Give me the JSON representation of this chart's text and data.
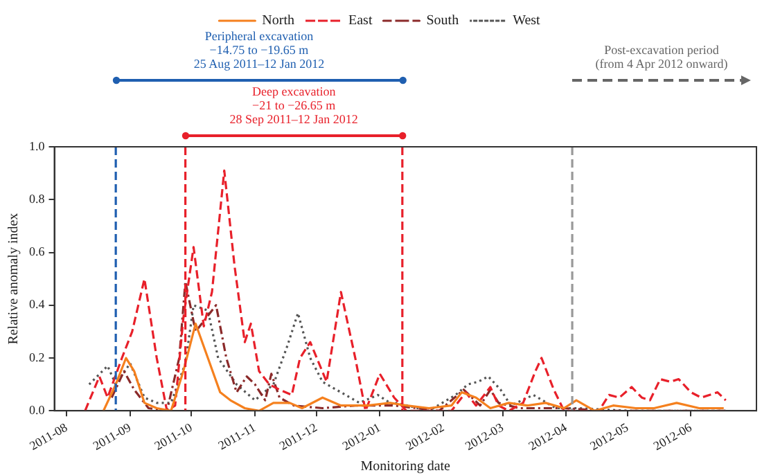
{
  "chart_data": {
    "type": "line",
    "xlabel": "Monitoring date",
    "ylabel": "Relative anomaly index",
    "xlim": [
      "2011-07-26",
      "2012-07-03"
    ],
    "xticks": [
      {
        "value": "2011-08-01",
        "label": "2011-08"
      },
      {
        "value": "2011-09-01",
        "label": "2011-09"
      },
      {
        "value": "2011-10-01",
        "label": "2011-10"
      },
      {
        "value": "2011-11-01",
        "label": "2011-11"
      },
      {
        "value": "2011-12-01",
        "label": "2011-12"
      },
      {
        "value": "2012-01-01",
        "label": "2012-01"
      },
      {
        "value": "2012-02-01",
        "label": "2012-02"
      },
      {
        "value": "2012-03-01",
        "label": "2012-03"
      },
      {
        "value": "2012-04-01",
        "label": "2012-04"
      },
      {
        "value": "2012-05-01",
        "label": "2012-05"
      },
      {
        "value": "2012-06-01",
        "label": "2012-06"
      }
    ],
    "ylim": [
      0,
      1
    ],
    "yticks": [
      {
        "value": 0,
        "label": "0.0"
      },
      {
        "value": 0.2,
        "label": "0.2"
      },
      {
        "value": 0.4,
        "label": "0.4"
      },
      {
        "value": 0.6,
        "label": "0.6"
      },
      {
        "value": 0.8,
        "label": "0.8"
      },
      {
        "value": 1,
        "label": "1.0"
      }
    ],
    "grid": false,
    "legend": "top",
    "marker": "none",
    "series": [
      {
        "name": "North",
        "color": "#f5801e",
        "line_style": "solid",
        "x": [
          "2011-08-19",
          "2011-08-25",
          "2011-08-30",
          "2011-09-03",
          "2011-09-08",
          "2011-09-14",
          "2011-09-21",
          "2011-09-27",
          "2011-10-03",
          "2011-10-09",
          "2011-10-15",
          "2011-10-20",
          "2011-10-27",
          "2011-11-03",
          "2011-11-10",
          "2011-11-18",
          "2011-11-24",
          "2011-12-04",
          "2011-12-13",
          "2011-12-26",
          "2012-01-06",
          "2012-01-14",
          "2012-01-25",
          "2012-02-05",
          "2012-02-10",
          "2012-02-17",
          "2012-02-24",
          "2012-03-04",
          "2012-03-13",
          "2012-03-22",
          "2012-03-31",
          "2012-04-06",
          "2012-04-15",
          "2012-04-24",
          "2012-05-05",
          "2012-05-14",
          "2012-05-25",
          "2012-06-05",
          "2012-06-17"
        ],
        "values": [
          0,
          0.1,
          0.2,
          0.15,
          0.03,
          0.01,
          0,
          0.15,
          0.33,
          0.2,
          0.07,
          0.04,
          0.01,
          0,
          0.03,
          0.03,
          0.01,
          0.05,
          0.02,
          0.02,
          0.03,
          0.02,
          0.01,
          0.02,
          0.07,
          0.05,
          0.01,
          0.03,
          0.02,
          0.03,
          0.01,
          0.04,
          0,
          0.02,
          0.01,
          0.01,
          0.03,
          0.01,
          0.01
        ]
      },
      {
        "name": "East",
        "color": "#e8202a",
        "line_style": "dashed",
        "x": [
          "2011-08-10",
          "2011-08-17",
          "2011-08-21",
          "2011-08-28",
          "2011-09-02",
          "2011-09-08",
          "2011-09-14",
          "2011-09-19",
          "2011-09-23",
          "2011-09-27",
          "2011-10-02",
          "2011-10-07",
          "2011-10-11",
          "2011-10-17",
          "2011-10-22",
          "2011-10-27",
          "2011-10-30",
          "2011-11-03",
          "2011-11-08",
          "2011-11-13",
          "2011-11-19",
          "2011-11-23",
          "2011-11-28",
          "2011-12-06",
          "2011-12-13",
          "2011-12-20",
          "2011-12-25",
          "2012-01-01",
          "2012-01-08",
          "2012-01-14",
          "2012-02-05",
          "2012-02-12",
          "2012-02-17",
          "2012-02-24",
          "2012-02-28",
          "2012-03-04",
          "2012-03-11",
          "2012-03-17",
          "2012-03-20",
          "2012-03-26",
          "2012-03-31",
          "2012-04-17",
          "2012-04-22",
          "2012-04-27",
          "2012-05-03",
          "2012-05-08",
          "2012-05-12",
          "2012-05-17",
          "2012-05-22",
          "2012-05-26",
          "2012-06-01",
          "2012-06-06",
          "2012-06-14",
          "2012-06-18"
        ],
        "values": [
          0,
          0.13,
          0.05,
          0.2,
          0.3,
          0.5,
          0.2,
          0,
          0.02,
          0.35,
          0.62,
          0.32,
          0.45,
          0.91,
          0.55,
          0.26,
          0.33,
          0.15,
          0.1,
          0.08,
          0.06,
          0.2,
          0.26,
          0.11,
          0.45,
          0.2,
          0,
          0.14,
          0.05,
          0,
          0,
          0.07,
          0.02,
          0.09,
          0.02,
          0,
          0.03,
          0.15,
          0.2,
          0.08,
          0,
          0,
          0.06,
          0.05,
          0.09,
          0.05,
          0.04,
          0.12,
          0.11,
          0.12,
          0.07,
          0.05,
          0.07,
          0.04
        ]
      },
      {
        "name": "South",
        "color": "#8b2a2a",
        "line_style": "dashdot",
        "x": [
          "2011-08-23",
          "2011-08-29",
          "2011-09-03",
          "2011-09-10",
          "2011-09-19",
          "2011-09-25",
          "2011-09-28",
          "2011-10-03",
          "2011-10-08",
          "2011-10-13",
          "2011-10-18",
          "2011-10-23",
          "2011-10-28",
          "2011-11-01",
          "2011-11-06",
          "2011-11-09",
          "2011-11-13",
          "2011-11-20",
          "2011-12-04",
          "2011-12-20",
          "2011-12-31",
          "2012-01-08",
          "2012-01-30",
          "2012-02-11",
          "2012-02-19",
          "2012-02-24",
          "2012-02-28",
          "2012-03-09",
          "2012-03-31",
          "2012-04-20",
          "2012-05-20",
          "2012-06-18"
        ],
        "values": [
          0.05,
          0.15,
          0.08,
          0.01,
          0,
          0.2,
          0.49,
          0.3,
          0.35,
          0.4,
          0.2,
          0.07,
          0.13,
          0.1,
          0.04,
          0.14,
          0.05,
          0.02,
          0.01,
          0.02,
          0.02,
          0.02,
          0,
          0.08,
          0.02,
          0.08,
          0.03,
          0.01,
          0.01,
          0,
          0,
          0
        ]
      },
      {
        "name": "West",
        "color": "#555555",
        "line_style": "dotted",
        "x": [
          "2011-08-12",
          "2011-08-21",
          "2011-08-25",
          "2011-09-01",
          "2011-09-08",
          "2011-09-14",
          "2011-09-21",
          "2011-09-28",
          "2011-10-02",
          "2011-10-09",
          "2011-10-14",
          "2011-10-23",
          "2011-11-01",
          "2011-11-10",
          "2011-11-17",
          "2011-11-22",
          "2011-11-28",
          "2011-12-04",
          "2011-12-13",
          "2011-12-22",
          "2011-12-31",
          "2012-01-08",
          "2012-01-09",
          "2012-01-25",
          "2012-02-07",
          "2012-02-13",
          "2012-02-18",
          "2012-02-23",
          "2012-02-29",
          "2012-03-05",
          "2012-03-16",
          "2012-03-27",
          "2012-04-07",
          "2012-05-01",
          "2012-06-01",
          "2012-06-18"
        ],
        "values": [
          0.1,
          0.17,
          0.1,
          0.18,
          0.05,
          0.03,
          0.03,
          0.18,
          0.4,
          0.38,
          0.2,
          0.1,
          0.04,
          0.1,
          0.25,
          0.37,
          0.2,
          0.11,
          0.07,
          0.03,
          0.06,
          0.02,
          0.03,
          0,
          0.06,
          0.1,
          0.11,
          0.13,
          0.08,
          0.02,
          0.06,
          0.01,
          0.01,
          0,
          0,
          0
        ]
      }
    ],
    "ref_lines": [
      {
        "axis": "x",
        "value": "2011-08-25",
        "color": "#1f5fb0",
        "line_style": "dashed"
      },
      {
        "axis": "x",
        "value": "2011-09-28",
        "color": "#e8202a",
        "line_style": "dashed"
      },
      {
        "axis": "x",
        "value": "2012-01-12",
        "color": "#e8202a",
        "line_style": "dashed"
      },
      {
        "axis": "x",
        "value": "2012-04-04",
        "color": "#999999",
        "line_style": "dashed"
      }
    ],
    "annotations": [
      "Peripheral excavation\n−14.75 to −19.65 m\n25 Aug 2011–12 Jan 2012",
      "Deep excavation\n−21 to −26.65 m\n28 Sep 2011–12 Jan 2012",
      "Post-excavation period\n(from 4 Apr 2012 onward)"
    ]
  }
}
